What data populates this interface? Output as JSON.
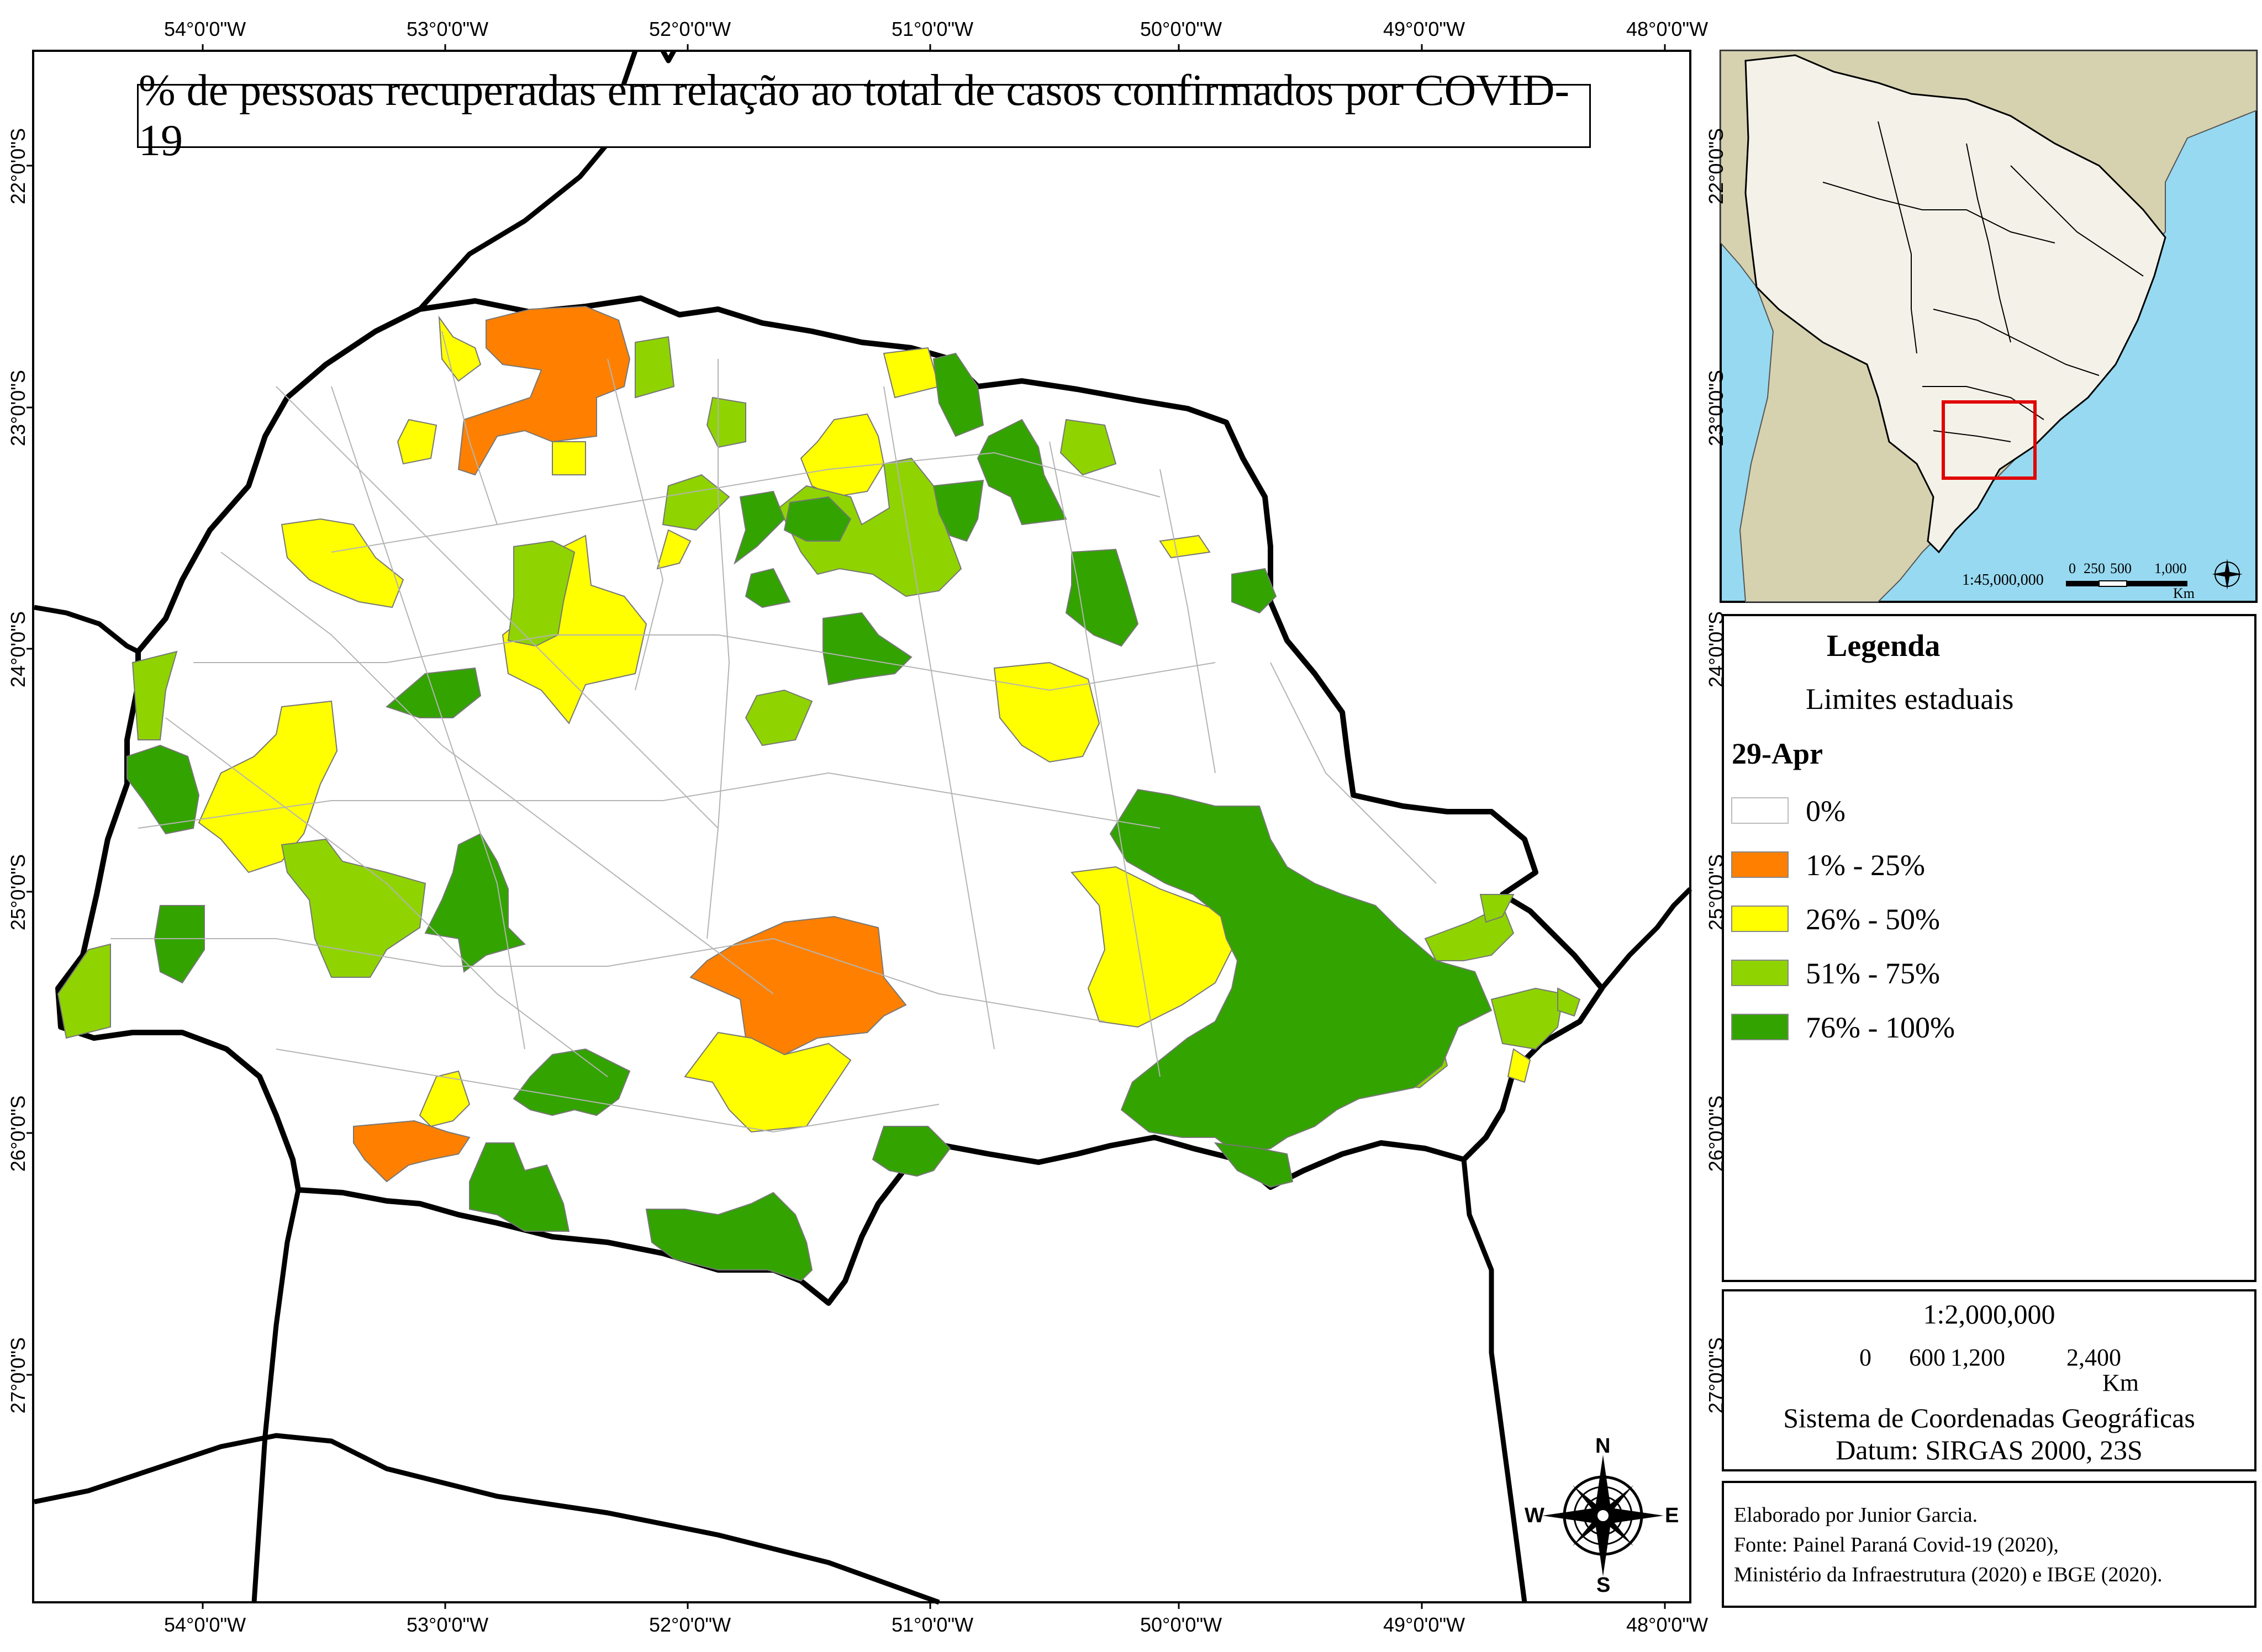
{
  "title": "% de pessoas recuperadas em relação ao total de casos confirmados por COVID-19",
  "legend": {
    "title": "Legenda",
    "boundary_label": "Limites estaduais",
    "date_label": "29-Apr",
    "classes": [
      {
        "label": "0%",
        "color": "#ffffff"
      },
      {
        "label": "1% - 25%",
        "color": "#ff8000"
      },
      {
        "label": "26% - 50%",
        "color": "#ffff00"
      },
      {
        "label": "51% - 75%",
        "color": "#8fd400"
      },
      {
        "label": "76% - 100%",
        "color": "#33a300"
      }
    ]
  },
  "scale": {
    "ratio": "1:2,000,000",
    "ticks": [
      "0",
      "600",
      "1,200",
      "2,400"
    ],
    "unit": "Km",
    "coord_system": "Sistema de Coordenadas Geográficas",
    "datum": "Datum: SIRGAS 2000, 23S"
  },
  "inset": {
    "ratio": "1:45,000,000",
    "ticks": [
      "0",
      "250",
      "500",
      "1,000"
    ],
    "unit": "Km"
  },
  "credits": {
    "line1": "Elaborado por Junior Garcia.",
    "line2": "Fonte: Painel Paraná Covid-19 (2020),",
    "line3": "Ministério da Infraestrutura (2020) e IBGE (2020)."
  },
  "graticule": {
    "longitudes": [
      "54°0'0\"W",
      "53°0'0\"W",
      "52°0'0\"W",
      "51°0'0\"W",
      "50°0'0\"W",
      "49°0'0\"W",
      "48°0'0\"W"
    ],
    "latitudes": [
      "22°0'0\"S",
      "23°0'0\"S",
      "24°0'0\"S",
      "25°0'0\"S",
      "26°0'0\"S",
      "27°0'0\"S"
    ]
  },
  "compass": {
    "n": "N",
    "s": "S",
    "e": "E",
    "w": "W"
  },
  "colors": {
    "ocean": "#97d9f0",
    "land_inset": "#d6d2b0",
    "brazil_inset": "#f4f2e8",
    "boundary": "#000000",
    "muni_line": "#b4b4b4",
    "inset_frame": "#e00000"
  }
}
